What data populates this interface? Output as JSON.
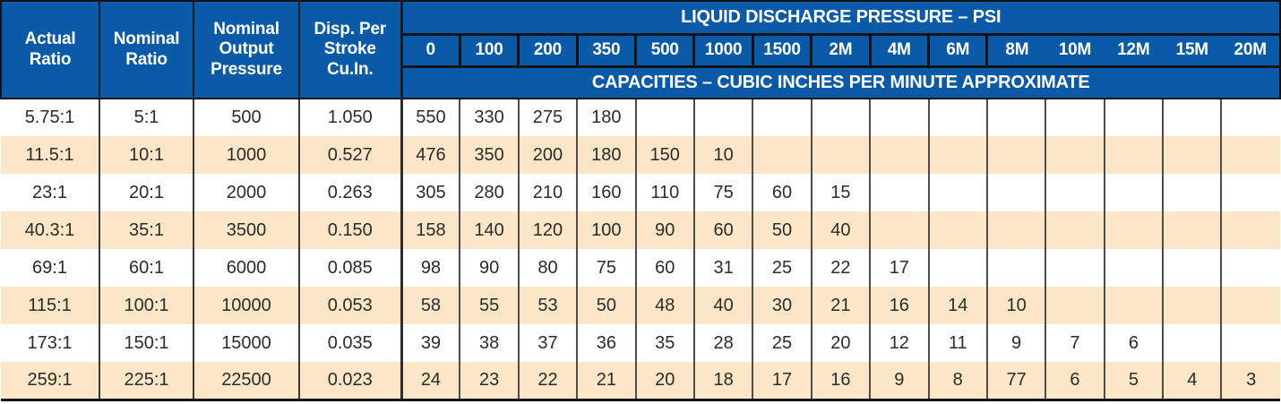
{
  "table": {
    "left_headers": [
      "Actual Ratio",
      "Nominal Ratio",
      "Nominal Output Pressure",
      "Disp. Per Stroke Cu.In."
    ],
    "group_header": "LIQUID DISCHARGE PRESSURE – PSI",
    "pressure_columns": [
      "0",
      "100",
      "200",
      "350",
      "500",
      "1000",
      "1500",
      "2M",
      "4M",
      "6M",
      "8M",
      "10M",
      "12M",
      "15M",
      "20M"
    ],
    "capacities_header": "CAPACITIES – CUBIC INCHES PER MINUTE APPROXIMATE",
    "rows": [
      {
        "actual_ratio": "5.75:1",
        "nominal_ratio": "5:1",
        "nominal_output_pressure": "500",
        "disp_per_stroke": "1.050",
        "capacities": [
          "550",
          "330",
          "275",
          "180",
          "",
          "",
          "",
          "",
          "",
          "",
          "",
          "",
          "",
          "",
          ""
        ]
      },
      {
        "actual_ratio": "11.5:1",
        "nominal_ratio": "10:1",
        "nominal_output_pressure": "1000",
        "disp_per_stroke": "0.527",
        "capacities": [
          "476",
          "350",
          "200",
          "180",
          "150",
          "10",
          "",
          "",
          "",
          "",
          "",
          "",
          "",
          "",
          ""
        ]
      },
      {
        "actual_ratio": "23:1",
        "nominal_ratio": "20:1",
        "nominal_output_pressure": "2000",
        "disp_per_stroke": "0.263",
        "capacities": [
          "305",
          "280",
          "210",
          "160",
          "110",
          "75",
          "60",
          "15",
          "",
          "",
          "",
          "",
          "",
          "",
          ""
        ]
      },
      {
        "actual_ratio": "40.3:1",
        "nominal_ratio": "35:1",
        "nominal_output_pressure": "3500",
        "disp_per_stroke": "0.150",
        "capacities": [
          "158",
          "140",
          "120",
          "100",
          "90",
          "60",
          "50",
          "40",
          "",
          "",
          "",
          "",
          "",
          "",
          ""
        ]
      },
      {
        "actual_ratio": "69:1",
        "nominal_ratio": "60:1",
        "nominal_output_pressure": "6000",
        "disp_per_stroke": "0.085",
        "capacities": [
          "98",
          "90",
          "80",
          "75",
          "60",
          "31",
          "25",
          "22",
          "17",
          "",
          "",
          "",
          "",
          "",
          ""
        ]
      },
      {
        "actual_ratio": "115:1",
        "nominal_ratio": "100:1",
        "nominal_output_pressure": "10000",
        "disp_per_stroke": "0.053",
        "capacities": [
          "58",
          "55",
          "53",
          "50",
          "48",
          "40",
          "30",
          "21",
          "16",
          "14",
          "10",
          "",
          "",
          "",
          ""
        ]
      },
      {
        "actual_ratio": "173:1",
        "nominal_ratio": "150:1",
        "nominal_output_pressure": "15000",
        "disp_per_stroke": "0.035",
        "capacities": [
          "39",
          "38",
          "37",
          "36",
          "35",
          "28",
          "25",
          "20",
          "12",
          "11",
          "9",
          "7",
          "6",
          "",
          ""
        ]
      },
      {
        "actual_ratio": "259:1",
        "nominal_ratio": "225:1",
        "nominal_output_pressure": "22500",
        "disp_per_stroke": "0.023",
        "capacities": [
          "24",
          "23",
          "22",
          "21",
          "20",
          "18",
          "17",
          "16",
          "9",
          "8",
          "77",
          "6",
          "5",
          "4",
          "3"
        ]
      }
    ]
  },
  "colors": {
    "header_blue": "#0a5aa7",
    "row_cream": "#fbe7c7",
    "header_text": "#ffffff",
    "data_text": "#2b2b2b",
    "grid_line": "#4d4d4d",
    "header_line": "#121212"
  }
}
